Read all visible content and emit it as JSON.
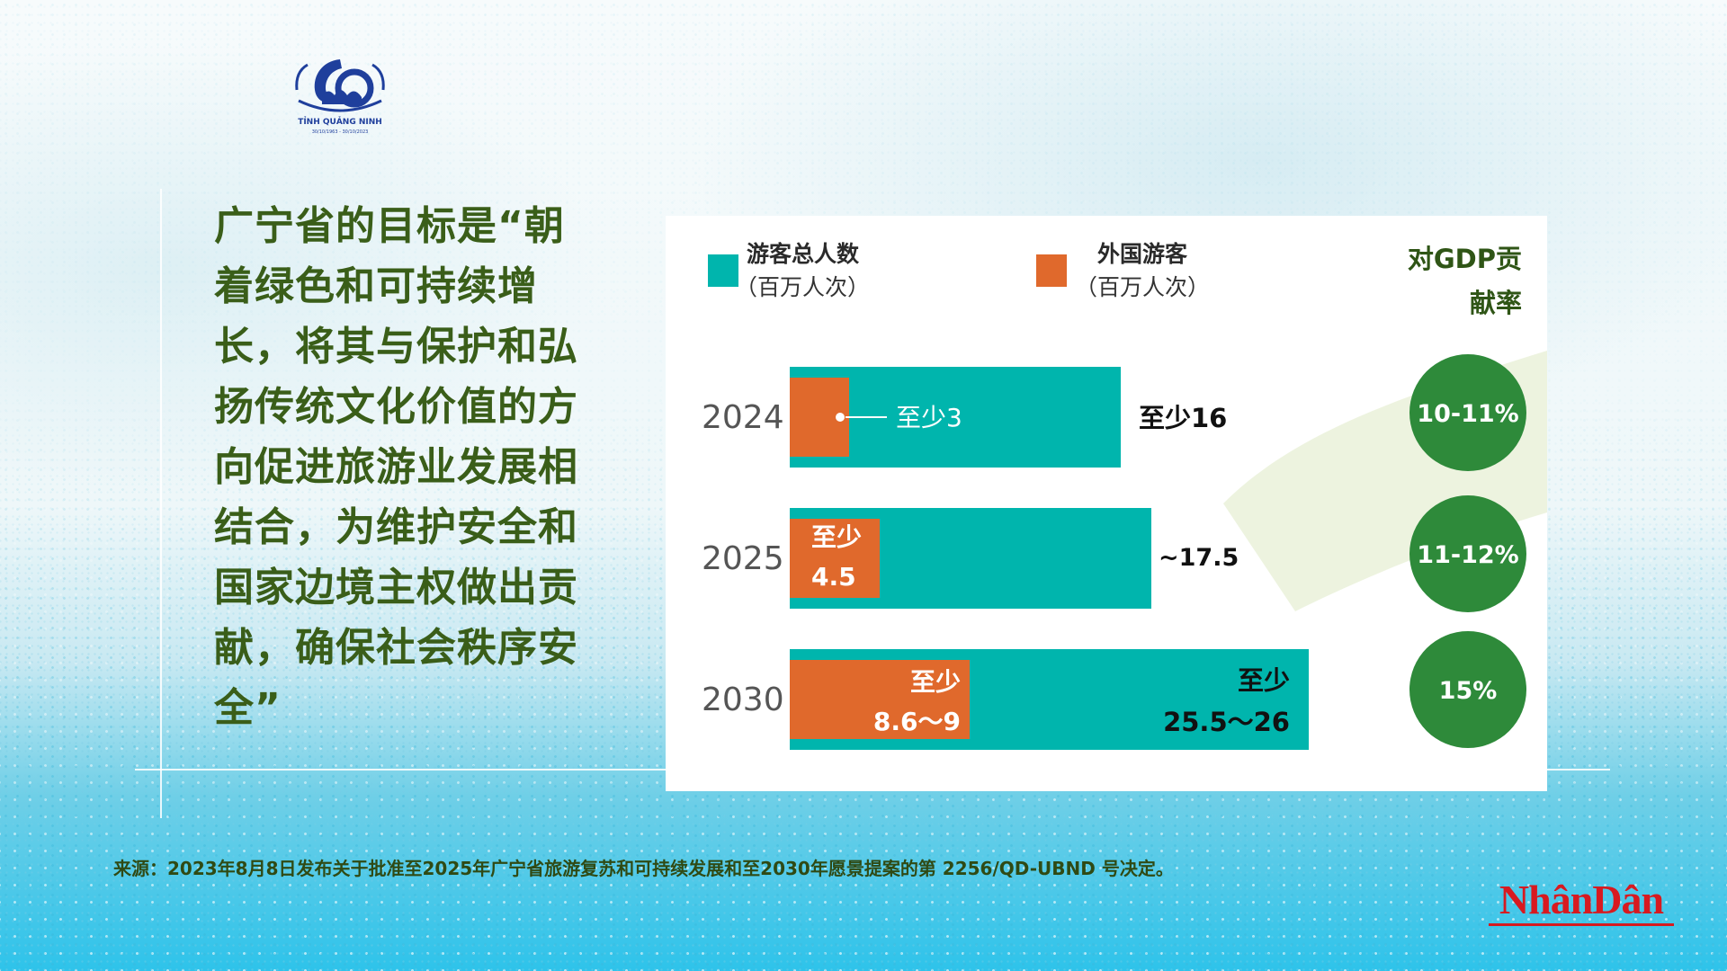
{
  "logo": {
    "name": "quang-ninh-60-years-emblem",
    "wordmark": "TỈNH QUẢNG NINH",
    "dates": "30/10/1963 - 30/10/2023",
    "color": "#1f3f9c"
  },
  "headline": "广宁省的目标是“朝着绿色和可持续增长，将其与保护和弘扬传统文化价值的方向促进旅游业发展相结合，为维护安全和国家边境主权做出贡献，确保社会秩序安全”",
  "legend": {
    "total": {
      "title": "游客总人数",
      "unit": "（百万人次）",
      "color": "#00b5ad"
    },
    "foreign": {
      "title": "外国游客",
      "unit": "（百万人次）",
      "color": "#e0692c"
    },
    "gdp_title": "对GDP贡献率"
  },
  "chart_data": {
    "type": "bar",
    "orientation": "horizontal",
    "categories": [
      "2024",
      "2025",
      "2030"
    ],
    "series": [
      {
        "name": "游客总人数（百万人次）",
        "values": [
          16,
          17.5,
          26
        ],
        "color": "#00b5ad"
      },
      {
        "name": "外国游客（百万人次）",
        "values": [
          3,
          4.5,
          9
        ],
        "color": "#e0692c"
      }
    ],
    "total_labels": [
      "至少16",
      "~17.5",
      "至少\n25.5～26"
    ],
    "foreign_labels": [
      "至少3",
      "至少\n4.5",
      "至少\n8.6～9"
    ],
    "gdp_share": {
      "title": "对GDP贡献率",
      "values": [
        "10-11%",
        "11-12%",
        "15%"
      ],
      "color": "#2e8a3a"
    }
  },
  "source": "来源：2023年8月8日发布关于批准至2025年广宁省旅游复苏和可持续发展和至2030年愿景提案的第 2256/QD-UBND 号决定。",
  "brand": "NhânDân"
}
